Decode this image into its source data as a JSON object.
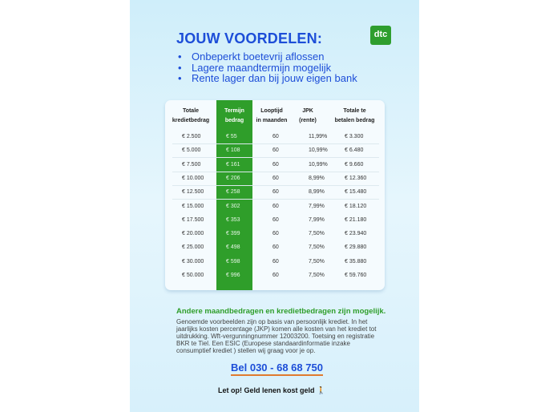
{
  "title": "JOUW VOORDELEN:",
  "logo": "dtc",
  "bullets": [
    "Onbeperkt boetevrij aflossen",
    "Lagere maandtermijn mogelijk",
    "Rente lager dan bij jouw eigen bank"
  ],
  "table": {
    "headers": [
      [
        "Totale",
        "kredietbedrag"
      ],
      [
        "Termijn",
        "bedrag"
      ],
      [
        "Looptijd",
        "in maanden"
      ],
      [
        "JPK",
        "(rente)"
      ],
      [
        "Totale te",
        "betalen bedrag"
      ]
    ],
    "rows": [
      [
        "€ 2.500",
        "€ 55",
        "60",
        "11,99%",
        "€ 3.300"
      ],
      [
        "€ 5.000",
        "€ 108",
        "60",
        "10,99%",
        "€ 6.480"
      ],
      [
        "€ 7.500",
        "€ 161",
        "60",
        "10,99%",
        "€ 9.660"
      ],
      [
        "€ 10.000",
        "€ 206",
        "60",
        "8,99%",
        "€ 12.360"
      ],
      [
        "€ 12.500",
        "€ 258",
        "60",
        "8,99%",
        "€ 15.480"
      ],
      [
        "€ 15.000",
        "€ 302",
        "60",
        "7,99%",
        "€ 18.120"
      ],
      [
        "€ 17.500",
        "€ 353",
        "60",
        "7,99%",
        "€ 21.180"
      ],
      [
        "€ 20.000",
        "€ 399",
        "60",
        "7,50%",
        "€ 23.940"
      ],
      [
        "€ 25.000",
        "€ 498",
        "60",
        "7,50%",
        "€ 29.880"
      ],
      [
        "€ 30.000",
        "€ 598",
        "60",
        "7,50%",
        "€ 35.880"
      ],
      [
        "€ 50.000",
        "€ 996",
        "60",
        "7,50%",
        "€ 59.760"
      ]
    ]
  },
  "note_title": "Andere maandbedragen en kredietbedragen zijn mogelijk.",
  "note": "Genoemde voorbeelden zijn op basis van persoonlijk krediet. In het jaarlijks kosten percentage (JKP) komen alle kosten van het krediet tot uitdrukking. Wft-vergunningnummer 12003200. Toetsing en registratie BKR te Tiel. Een ESIC (Europese standaardinformatie inzake consumptief krediet ) stellen wij graag voor je op.",
  "phone": "Bel 030 - 68 68 750",
  "warning": "Let op! Geld lenen kost geld",
  "colors": {
    "blue": "#1d4ed8",
    "green": "#2f9e2a",
    "orange": "#e07a2e"
  }
}
